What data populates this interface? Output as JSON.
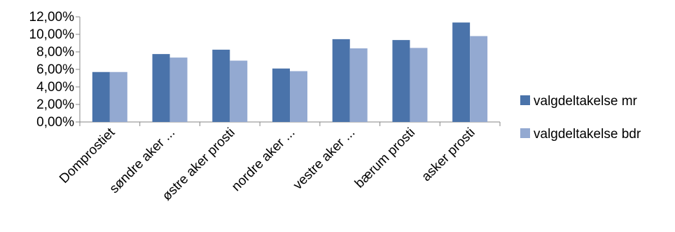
{
  "chart_data": {
    "type": "bar",
    "categories": [
      "Domprostiet",
      "søndre aker ...",
      "østre aker prosti",
      "nordre aker ...",
      "vestre aker ...",
      "bærum prosti",
      "asker prosti"
    ],
    "series": [
      {
        "name": "valgdeltakelse mr",
        "color": "#4a73aa",
        "values": [
          5.7,
          7.75,
          8.25,
          6.1,
          9.45,
          9.35,
          11.35
        ]
      },
      {
        "name": "valgdeltakelse bdr",
        "color": "#93a9d1",
        "values": [
          5.7,
          7.35,
          7.0,
          5.8,
          8.4,
          8.45,
          9.8
        ]
      }
    ],
    "y_ticks": [
      "0,00%",
      "2,00%",
      "4,00%",
      "6,00%",
      "8,00%",
      "10,00%",
      "12,00%"
    ],
    "ylim": [
      0,
      12
    ],
    "grid": false,
    "legend_position": "right",
    "title": "",
    "xlabel": "",
    "ylabel": ""
  }
}
